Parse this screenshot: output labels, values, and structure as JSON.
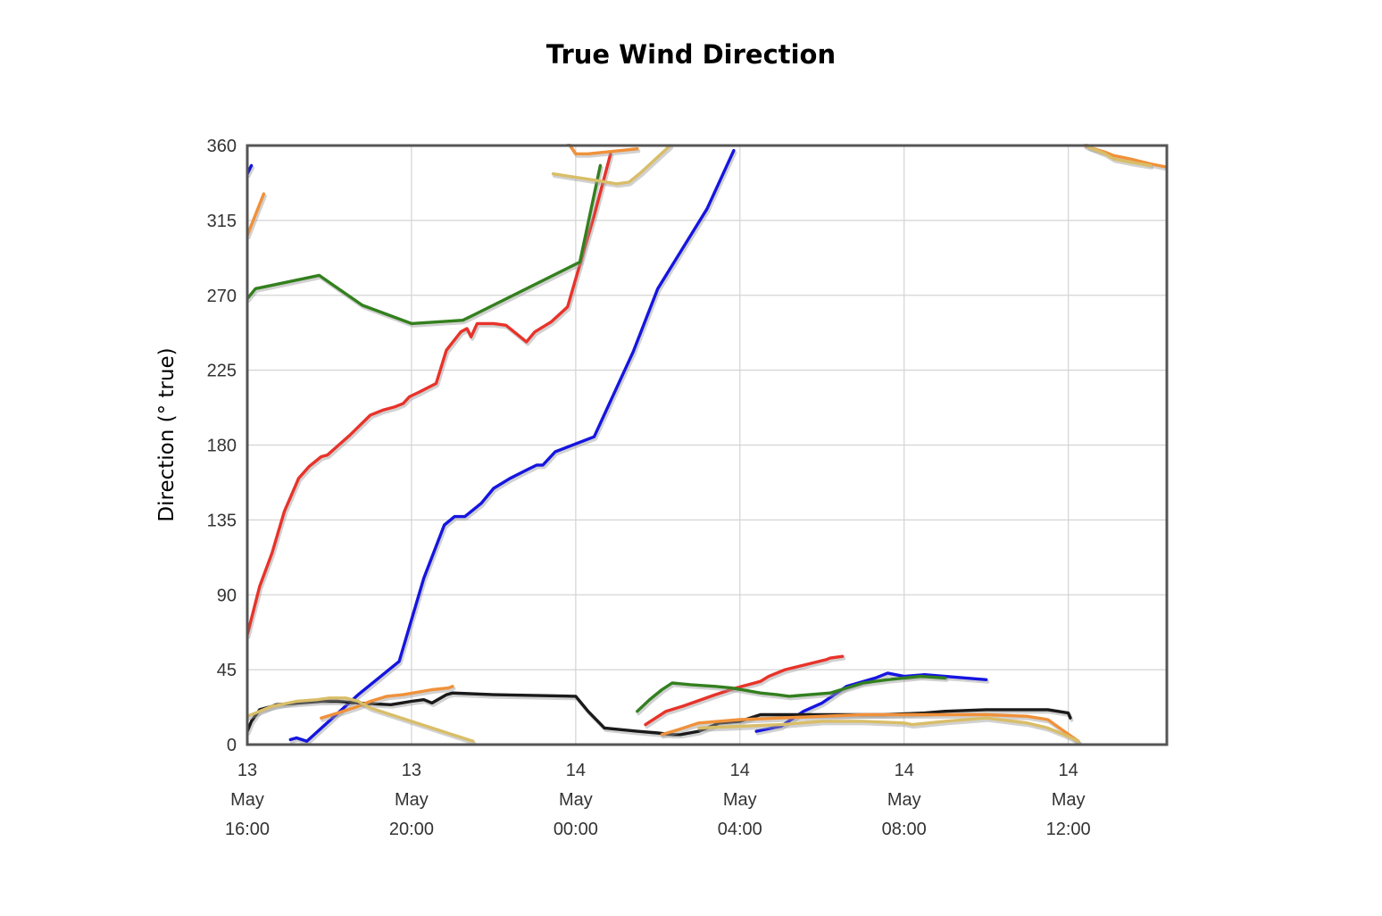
{
  "chart_data": {
    "type": "line",
    "title": "True Wind Direction",
    "xlabel": "",
    "ylabel": "Direction (° true)",
    "x_unit": "hours since 13 May 16:00",
    "xlim": [
      0,
      22.4
    ],
    "ylim": [
      0,
      360
    ],
    "grid": true,
    "legend": "none",
    "x_ticks": [
      {
        "x": 0,
        "lines": [
          "13",
          "May",
          "16:00"
        ]
      },
      {
        "x": 4,
        "lines": [
          "13",
          "May",
          "20:00"
        ]
      },
      {
        "x": 8,
        "lines": [
          "14",
          "May",
          "00:00"
        ]
      },
      {
        "x": 12,
        "lines": [
          "14",
          "May",
          "04:00"
        ]
      },
      {
        "x": 16,
        "lines": [
          "14",
          "May",
          "08:00"
        ]
      },
      {
        "x": 20,
        "lines": [
          "14",
          "May",
          "12:00"
        ]
      }
    ],
    "y_ticks": [
      0,
      45,
      90,
      135,
      180,
      225,
      270,
      315,
      360
    ],
    "series": [
      {
        "color": "#1515e0",
        "segments": [
          [
            [
              0,
              343
            ],
            [
              0.1,
              348
            ]
          ],
          [
            [
              1.05,
              3
            ],
            [
              1.2,
              4
            ],
            [
              1.45,
              2
            ],
            [
              2.7,
              30
            ],
            [
              3.7,
              50
            ],
            [
              4.3,
              100
            ],
            [
              4.8,
              132
            ],
            [
              5.05,
              137
            ],
            [
              5.3,
              137
            ],
            [
              5.7,
              145
            ],
            [
              6.0,
              154
            ],
            [
              6.4,
              160
            ],
            [
              6.8,
              165
            ],
            [
              7.05,
              168
            ],
            [
              7.2,
              168
            ],
            [
              7.5,
              176
            ],
            [
              8.45,
              185
            ],
            [
              9.4,
              236
            ],
            [
              10.0,
              274
            ],
            [
              10.5,
              294
            ],
            [
              11.2,
              322
            ],
            [
              11.85,
              357
            ]
          ],
          [
            [
              12.4,
              8
            ],
            [
              13.0,
              11
            ],
            [
              13.55,
              20
            ],
            [
              14.0,
              25
            ],
            [
              14.6,
              35
            ],
            [
              15.3,
              40
            ],
            [
              15.6,
              43
            ],
            [
              16.0,
              41
            ],
            [
              16.5,
              42
            ],
            [
              17.0,
              41
            ],
            [
              17.5,
              40
            ],
            [
              18.0,
              39
            ]
          ]
        ]
      },
      {
        "color": "#e8332a",
        "segments": [
          [
            [
              0,
              66
            ],
            [
              0.3,
              95
            ],
            [
              0.6,
              115
            ],
            [
              0.9,
              140
            ],
            [
              1.25,
              160
            ],
            [
              1.5,
              167
            ],
            [
              1.8,
              173
            ],
            [
              1.95,
              174
            ],
            [
              2.5,
              186
            ],
            [
              3.0,
              198
            ],
            [
              3.3,
              201
            ],
            [
              3.6,
              203
            ],
            [
              3.8,
              205
            ],
            [
              3.95,
              209
            ],
            [
              4.2,
              212
            ],
            [
              4.6,
              217
            ],
            [
              4.85,
              237
            ],
            [
              5.2,
              248
            ],
            [
              5.35,
              250
            ],
            [
              5.45,
              245
            ],
            [
              5.6,
              253
            ],
            [
              6.0,
              253
            ],
            [
              6.3,
              252
            ],
            [
              6.55,
              247
            ],
            [
              6.8,
              242
            ],
            [
              7.0,
              248
            ],
            [
              7.4,
              254
            ],
            [
              7.8,
              263
            ],
            [
              8.45,
              318
            ],
            [
              8.85,
              355
            ]
          ],
          [
            [
              9.7,
              12
            ],
            [
              10.2,
              20
            ],
            [
              10.6,
              23
            ],
            [
              11.4,
              30
            ],
            [
              11.9,
              34
            ],
            [
              12.5,
              38
            ],
            [
              12.7,
              41
            ],
            [
              13.1,
              45
            ],
            [
              14.1,
              51
            ],
            [
              14.2,
              52
            ],
            [
              14.5,
              53
            ]
          ]
        ]
      },
      {
        "color": "#33801e",
        "segments": [
          [
            [
              0,
              268
            ],
            [
              0.2,
              274
            ],
            [
              0.4,
              275
            ],
            [
              1.75,
              282
            ],
            [
              2.8,
              264
            ],
            [
              4.0,
              253
            ],
            [
              5.25,
              255
            ],
            [
              5.5,
              258
            ],
            [
              8.1,
              290
            ],
            [
              8.6,
              348
            ]
          ],
          [
            [
              9.5,
              20
            ],
            [
              9.8,
              27
            ],
            [
              10.1,
              33
            ],
            [
              10.35,
              37
            ],
            [
              10.8,
              36
            ],
            [
              11.4,
              35
            ],
            [
              11.8,
              34
            ],
            [
              12.5,
              31
            ],
            [
              12.9,
              30
            ],
            [
              13.2,
              29
            ],
            [
              14.2,
              31
            ],
            [
              15.0,
              37
            ],
            [
              15.6,
              39
            ],
            [
              16.4,
              41
            ],
            [
              17.0,
              40
            ]
          ]
        ]
      },
      {
        "color": "#1a1a1a",
        "segments": [
          [
            [
              0,
              8
            ],
            [
              0.1,
              14
            ],
            [
              0.3,
              21
            ],
            [
              0.6,
              23
            ],
            [
              0.7,
              24
            ],
            [
              1.8,
              26
            ],
            [
              2.2,
              26
            ],
            [
              2.7,
              25
            ],
            [
              3.5,
              24
            ],
            [
              3.75,
              25
            ],
            [
              4.0,
              26
            ],
            [
              4.3,
              27
            ],
            [
              4.5,
              25
            ],
            [
              4.85,
              30
            ],
            [
              5.0,
              31
            ],
            [
              6.0,
              30
            ],
            [
              8.0,
              29
            ],
            [
              8.3,
              20
            ],
            [
              8.7,
              10
            ],
            [
              9.5,
              8
            ],
            [
              10.0,
              7
            ],
            [
              10.35,
              6
            ],
            [
              10.55,
              6
            ],
            [
              11.0,
              8
            ],
            [
              11.5,
              13
            ],
            [
              12.0,
              14
            ],
            [
              12.5,
              18
            ],
            [
              14.0,
              18
            ],
            [
              15.0,
              18
            ],
            [
              15.5,
              18
            ],
            [
              16.5,
              19
            ],
            [
              17.0,
              20
            ],
            [
              18.0,
              21
            ],
            [
              19.0,
              21
            ],
            [
              19.5,
              21
            ],
            [
              20.0,
              19
            ],
            [
              20.05,
              16
            ]
          ]
        ]
      },
      {
        "color": "#f0913a",
        "segments": [
          [
            [
              0,
              306
            ],
            [
              0.4,
              331
            ]
          ],
          [
            [
              1.8,
              16
            ],
            [
              2.2,
              19
            ],
            [
              2.7,
              23
            ],
            [
              3.0,
              26
            ],
            [
              3.4,
              29
            ],
            [
              3.8,
              30
            ],
            [
              4.5,
              33
            ],
            [
              4.9,
              34
            ],
            [
              5.0,
              35
            ]
          ],
          [
            [
              7.75,
              364
            ],
            [
              8.0,
              355
            ],
            [
              8.3,
              355
            ],
            [
              9.5,
              358
            ]
          ],
          [
            [
              10.1,
              6
            ],
            [
              10.5,
              9
            ],
            [
              11.0,
              13
            ],
            [
              12.0,
              15
            ],
            [
              13.0,
              16
            ],
            [
              14.0,
              17
            ],
            [
              15.0,
              18
            ],
            [
              16.0,
              18
            ],
            [
              17.0,
              18
            ],
            [
              18.0,
              18
            ],
            [
              19.0,
              17
            ],
            [
              19.5,
              15
            ],
            [
              19.9,
              8
            ],
            [
              20.25,
              2
            ]
          ],
          [
            [
              20.4,
              360
            ],
            [
              20.5,
              359
            ],
            [
              20.9,
              356
            ],
            [
              21.1,
              354
            ],
            [
              21.5,
              352
            ],
            [
              22.0,
              349
            ],
            [
              22.4,
              347
            ]
          ]
        ]
      },
      {
        "color": "#d9be68",
        "segments": [
          [
            [
              0,
              17
            ],
            [
              0.2,
              19
            ],
            [
              0.6,
              23
            ],
            [
              0.8,
              24
            ],
            [
              1.2,
              26
            ],
            [
              1.7,
              27
            ],
            [
              2.0,
              28
            ],
            [
              2.4,
              28
            ],
            [
              2.7,
              26
            ],
            [
              3.0,
              22
            ],
            [
              3.5,
              18
            ],
            [
              4.5,
              10
            ],
            [
              5.5,
              2
            ]
          ],
          [
            [
              7.45,
              343
            ],
            [
              8.5,
              339
            ],
            [
              9.0,
              337
            ],
            [
              9.3,
              338
            ],
            [
              9.6,
              344
            ],
            [
              10.3,
              360
            ]
          ],
          [
            [
              11.0,
              10
            ],
            [
              12.0,
              11
            ],
            [
              13.0,
              12
            ],
            [
              14.0,
              14
            ],
            [
              15.0,
              14
            ],
            [
              16.0,
              13
            ],
            [
              16.2,
              12
            ],
            [
              17.0,
              14
            ],
            [
              18.0,
              16
            ],
            [
              19.0,
              13
            ],
            [
              19.5,
              10
            ],
            [
              19.9,
              6
            ],
            [
              20.25,
              2
            ]
          ],
          [
            [
              20.4,
              362
            ],
            [
              20.5,
              359
            ],
            [
              20.9,
              355
            ],
            [
              21.1,
              352
            ],
            [
              21.5,
              350
            ],
            [
              22.0,
              348
            ]
          ]
        ]
      }
    ]
  }
}
